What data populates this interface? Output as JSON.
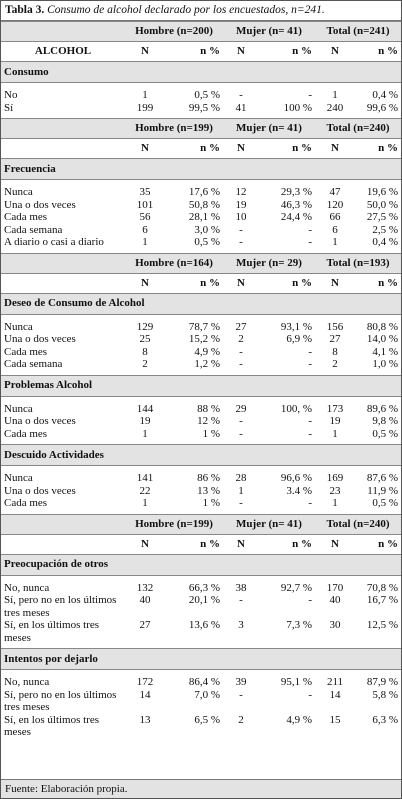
{
  "table": {
    "title_label": "Tabla 3.",
    "title_text": "Consumo de alcohol declarado por los encuestados, n=241.",
    "blocks": [
      {
        "groups": [
          "Hombre (n=200)",
          "Mujer (n= 41)",
          "Total (n=241)"
        ],
        "row_header": "ALCOHOL",
        "columns": [
          "N",
          "n %",
          "N",
          "n %",
          "N",
          "n %"
        ],
        "sections": [
          {
            "title": "Consumo",
            "rows": [
              [
                "No",
                "1",
                "0,5 %",
                "-",
                "-",
                "1",
                "0,4 %"
              ],
              [
                "Sí",
                "199",
                "99,5 %",
                "41",
                "100 %",
                "240",
                "99,6 %"
              ]
            ]
          }
        ]
      },
      {
        "groups": [
          "Hombre (n=199)",
          "Mujer (n= 41)",
          "Total (n=240)"
        ],
        "columns": [
          "N",
          "n %",
          "N",
          "n %",
          "N",
          "n %"
        ],
        "sections": [
          {
            "title": "Frecuencia",
            "rows": [
              [
                "Nunca",
                "35",
                "17,6 %",
                "12",
                "29,3 %",
                "47",
                "19,6 %"
              ],
              [
                "Una o dos veces",
                "101",
                "50,8 %",
                "19",
                "46,3 %",
                "120",
                "50,0 %"
              ],
              [
                "Cada mes",
                "56",
                "28,1 %",
                "10",
                "24,4 %",
                "66",
                "27,5 %"
              ],
              [
                "Cada semana",
                "6",
                "3,0 %",
                "-",
                "-",
                "6",
                "2,5 %"
              ],
              [
                "A diario o casi a diario",
                "1",
                "0,5 %",
                "-",
                "-",
                "1",
                "0,4 %"
              ]
            ]
          }
        ]
      },
      {
        "groups": [
          "Hombre (n=164)",
          "Mujer (n= 29)",
          "Total (n=193)"
        ],
        "columns": [
          "N",
          "n %",
          "N",
          "n %",
          "N",
          "n %"
        ],
        "sections": [
          {
            "title": "Deseo de Consumo de Alcohol",
            "rows": [
              [
                "Nunca",
                "129",
                "78,7 %",
                "27",
                "93,1 %",
                "156",
                "80,8 %"
              ],
              [
                "Una o dos veces",
                "25",
                "15,2 %",
                "2",
                "6,9 %",
                "27",
                "14,0 %"
              ],
              [
                "Cada mes",
                "8",
                "4,9 %",
                "-",
                "-",
                "8",
                "4,1 %"
              ],
              [
                "Cada semana",
                "2",
                "1,2 %",
                "-",
                "-",
                "2",
                "1,0 %"
              ]
            ]
          },
          {
            "title": "Problemas Alcohol",
            "rows": [
              [
                "Nunca",
                "144",
                "88 %",
                "29",
                "100, %",
                "173",
                "89,6 %"
              ],
              [
                "Una o dos veces",
                "19",
                "12 %",
                "-",
                "-",
                "19",
                "9,8 %"
              ],
              [
                "Cada mes",
                "1",
                "1 %",
                "-",
                "-",
                "1",
                "0,5 %"
              ]
            ]
          },
          {
            "title": "Descuido Actividades",
            "rows": [
              [
                "Nunca",
                "141",
                "86 %",
                "28",
                "96,6 %",
                "169",
                "87,6 %"
              ],
              [
                "Una o dos veces",
                "22",
                "13 %",
                "1",
                "3.4 %",
                "23",
                "11,9 %"
              ],
              [
                "Cada mes",
                "1",
                "1 %",
                "-",
                "-",
                "1",
                "0,5 %"
              ]
            ]
          }
        ]
      },
      {
        "groups": [
          "Hombre (n=199)",
          "Mujer (n= 41)",
          "Total (n=240)"
        ],
        "columns": [
          "N",
          "n %",
          "N",
          "n %",
          "N",
          "n %"
        ],
        "sections": [
          {
            "title": "Preocupación de otros",
            "rows": [
              [
                "No, nunca",
                "132",
                "66,3 %",
                "38",
                "92,7 %",
                "170",
                "70,8 %"
              ],
              [
                "Sí, pero no en los últimos tres meses",
                "40",
                "20,1 %",
                "-",
                "-",
                "40",
                "16,7 %"
              ],
              [
                "Sí, en los últimos tres meses",
                "27",
                "13,6 %",
                "3",
                "7,3 %",
                "30",
                "12,5 %"
              ]
            ]
          },
          {
            "title": "Intentos por dejarlo",
            "rows": [
              [
                "No, nunca",
                "172",
                "86,4 %",
                "39",
                "95,1 %",
                "211",
                "87,9 %"
              ],
              [
                "Sí, pero no en los últimos tres meses",
                "14",
                "7,0 %",
                "-",
                "-",
                "14",
                "5,8 %"
              ],
              [
                "Sí, en los últimos tres meses",
                "13",
                "6,5 %",
                "2",
                "4,9 %",
                "15",
                "6,3 %"
              ]
            ]
          }
        ]
      }
    ],
    "source": "Fuente: Elaboración propia."
  }
}
